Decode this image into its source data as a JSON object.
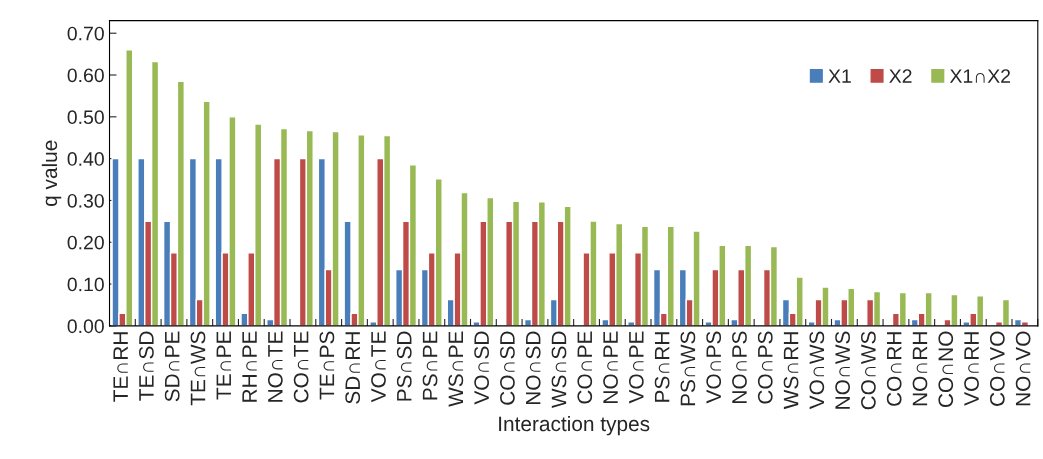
{
  "chart_data": {
    "type": "bar",
    "xlabel": "Interaction types",
    "ylabel": "q value",
    "categories": [
      "TE∩RH",
      "TE∩SD",
      "SD∩PE",
      "TE∩WS",
      "TE∩PE",
      "RH∩PE",
      "NO∩TE",
      "CO∩TE",
      "TE∩PS",
      "SD∩RH",
      "VO∩TE",
      "PS∩SD",
      "PS∩PE",
      "WS∩PE",
      "VO∩SD",
      "CO∩SD",
      "NO∩SD",
      "WS∩SD",
      "CO∩PE",
      "NO∩PE",
      "VO∩PE",
      "PS∩RH",
      "PS∩WS",
      "VO∩PS",
      "NO∩PS",
      "CO∩PS",
      "WS∩RH",
      "VO∩WS",
      "NO∩WS",
      "CO∩WS",
      "CO∩RH",
      "NO∩RH",
      "CO∩NO",
      "VO∩RH",
      "CO∩VO",
      "NO∩VO"
    ],
    "series": [
      {
        "name": "X1",
        "color": "#4a7ebb",
        "values": [
          0.4,
          0.4,
          0.25,
          0.4,
          0.4,
          0.03,
          0.015,
          null,
          0.4,
          0.25,
          0.01,
          0.135,
          0.135,
          0.063,
          0.01,
          0.003,
          0.015,
          0.063,
          0.003,
          0.015,
          0.01,
          0.135,
          0.135,
          0.01,
          0.015,
          0.003,
          0.063,
          0.01,
          0.015,
          0.003,
          0.003,
          0.015,
          0.003,
          0.01,
          0.003,
          0.015
        ]
      },
      {
        "name": "X2",
        "color": "#be4b48",
        "values": [
          0.03,
          0.25,
          0.175,
          0.063,
          0.175,
          0.175,
          0.4,
          0.4,
          0.135,
          0.03,
          0.4,
          0.25,
          0.175,
          0.175,
          0.25,
          0.25,
          0.25,
          0.25,
          0.175,
          0.175,
          0.175,
          0.03,
          0.063,
          0.135,
          0.135,
          0.135,
          0.03,
          0.063,
          0.063,
          0.063,
          0.03,
          0.03,
          0.015,
          0.03,
          0.01,
          0.01
        ]
      },
      {
        "name": "X1∩X2",
        "color": "#98b954",
        "values": [
          0.66,
          0.632,
          0.585,
          0.537,
          0.5,
          0.483,
          0.472,
          0.467,
          0.465,
          0.457,
          0.455,
          0.385,
          0.352,
          0.319,
          0.307,
          0.298,
          0.297,
          0.286,
          0.251,
          0.245,
          0.238,
          0.238,
          0.227,
          0.193,
          0.193,
          0.19,
          0.117,
          0.093,
          0.09,
          0.082,
          0.08,
          0.08,
          0.075,
          0.072,
          0.063,
          null
        ]
      }
    ],
    "ylim": [
      0,
      0.73
    ],
    "yticks": [
      {
        "value": 0,
        "label": "0.00"
      },
      {
        "value": 0.1,
        "label": "0.10"
      },
      {
        "value": 0.2,
        "label": "0.20"
      },
      {
        "value": 0.3,
        "label": "0.30"
      },
      {
        "value": 0.4,
        "label": "0.40"
      },
      {
        "value": 0.5,
        "label": "0.50"
      },
      {
        "value": 0.6,
        "label": "0.60"
      },
      {
        "value": 0.7,
        "label": "0.70"
      }
    ],
    "grid": false,
    "legend": "top right"
  }
}
